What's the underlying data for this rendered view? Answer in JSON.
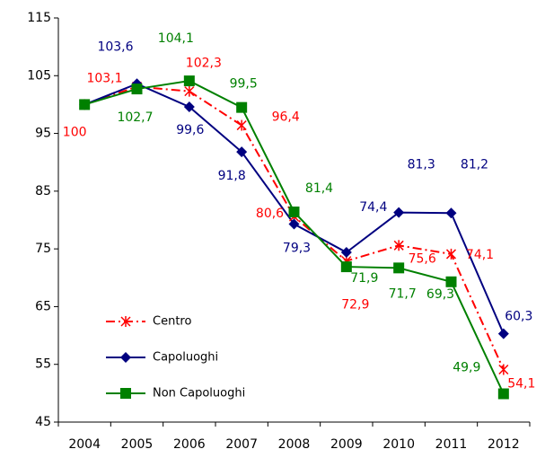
{
  "chart_data": {
    "type": "line",
    "categories": [
      "2004",
      "2005",
      "2006",
      "2007",
      "2008",
      "2009",
      "2010",
      "2011",
      "2012"
    ],
    "series": [
      {
        "name": "Centro",
        "color": "#ff0000",
        "dash": "dash-dot",
        "marker": "asterisk",
        "values": [
          100,
          103.1,
          102.3,
          96.4,
          80.6,
          72.9,
          75.6,
          74.1,
          54.1
        ],
        "value_labels": [
          null,
          "103,1",
          "102,3",
          "96,4",
          "80,6",
          "72,9",
          "75,6",
          "74,1",
          "54,1"
        ]
      },
      {
        "name": "Capoluoghi",
        "color": "#000080",
        "dash": "solid",
        "marker": "diamond",
        "values": [
          100,
          103.6,
          99.6,
          91.8,
          79.3,
          74.4,
          81.3,
          81.2,
          60.3
        ],
        "value_labels": [
          null,
          "103,6",
          "99,6",
          "91,8",
          "79,3",
          "74,4",
          "81,3",
          "81,2",
          "60,3"
        ]
      },
      {
        "name": "Non Capoluoghi",
        "color": "#008000",
        "dash": "solid",
        "marker": "square",
        "values": [
          100,
          102.7,
          104.1,
          99.5,
          81.4,
          71.9,
          71.7,
          69.3,
          49.9
        ],
        "value_labels": [
          null,
          "102,7",
          "104,1",
          "99,5",
          "81,4",
          "71,9",
          "71,7",
          "69,3",
          "49,9"
        ]
      }
    ],
    "ylim": [
      45,
      115
    ],
    "yticks": [
      45,
      55,
      65,
      75,
      85,
      95,
      105,
      115
    ],
    "grid": false,
    "legend": "lower left"
  }
}
